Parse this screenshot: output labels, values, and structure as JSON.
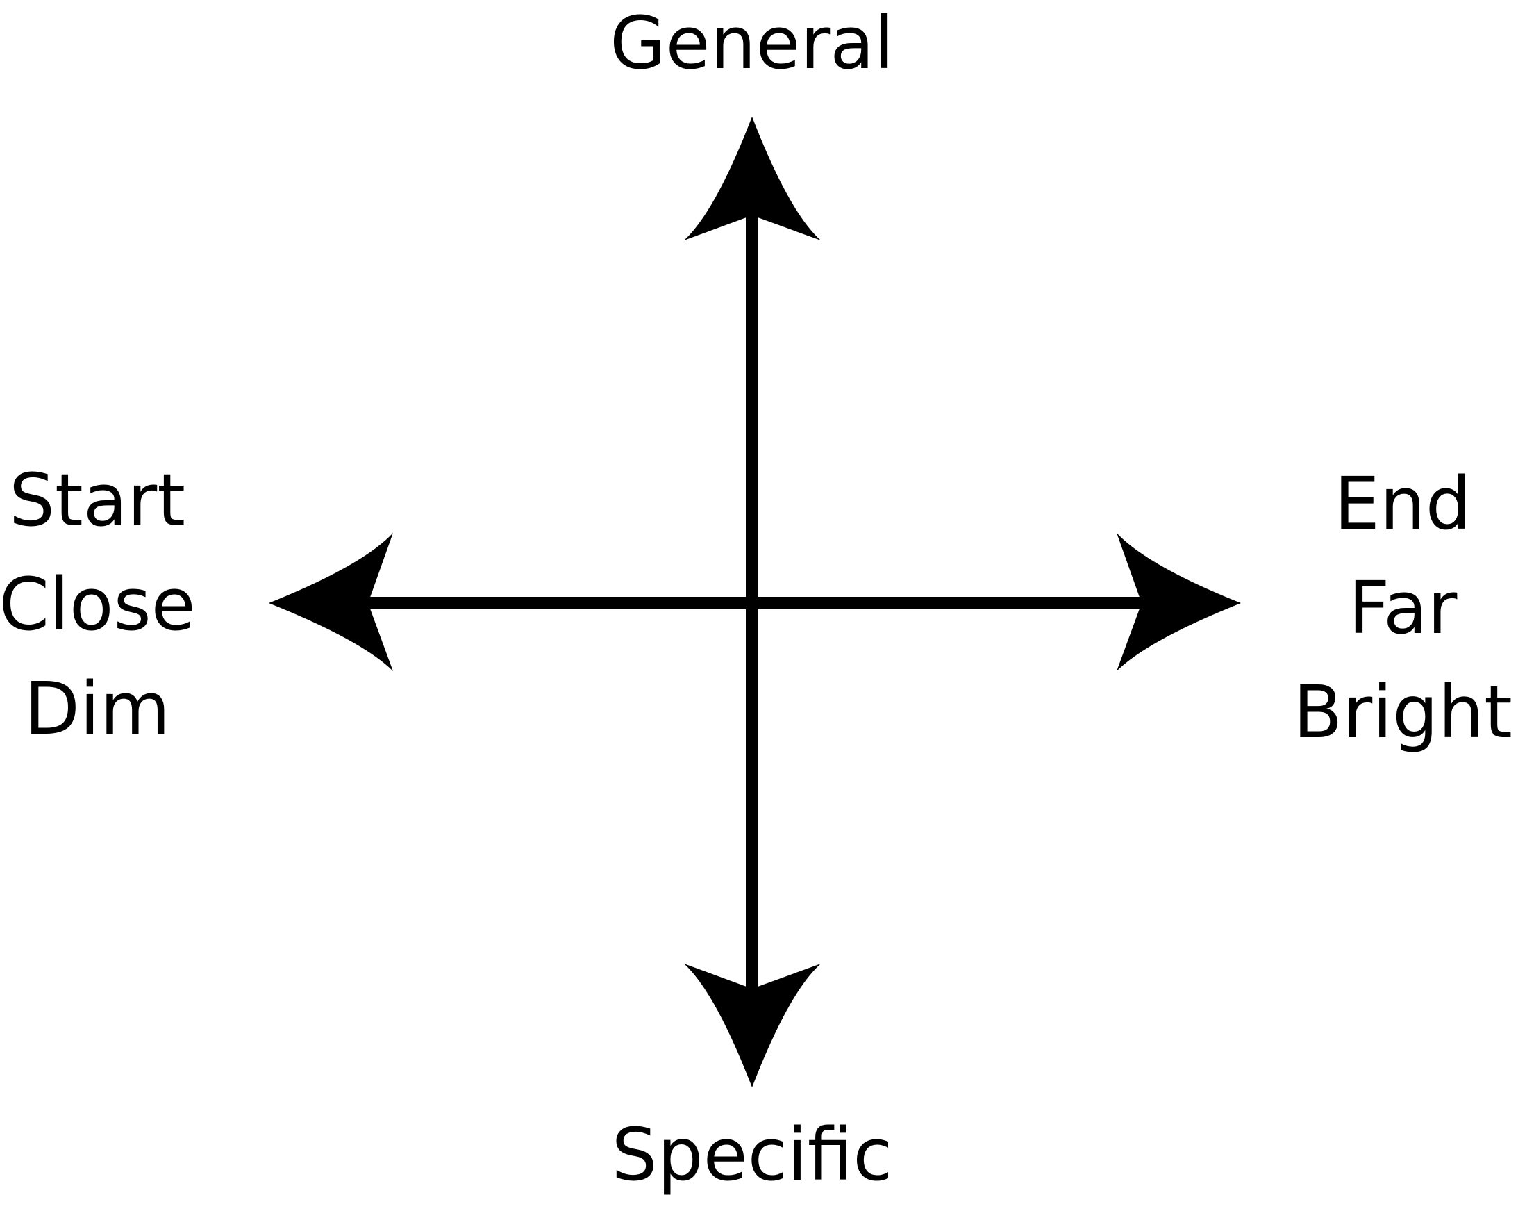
{
  "colors": {
    "stroke": "#000000",
    "background": "#ffffff"
  },
  "labels": {
    "top": "General",
    "bottom": "Specific",
    "left": [
      "Start",
      "Close",
      "Dim"
    ],
    "right": [
      "End",
      "Far",
      "Bright"
    ]
  }
}
